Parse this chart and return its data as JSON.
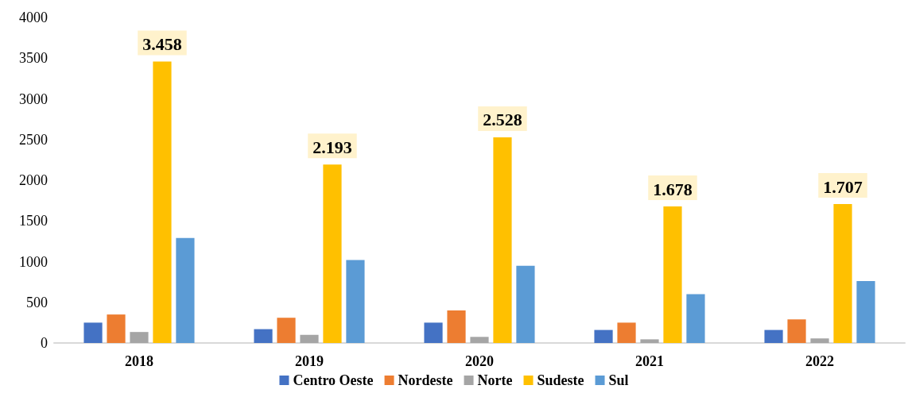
{
  "chart_data": {
    "type": "bar",
    "categories": [
      "2018",
      "2019",
      "2020",
      "2021",
      "2022"
    ],
    "series": [
      {
        "name": "Centro Oeste",
        "color": "#4472c4",
        "values": [
          250,
          170,
          250,
          160,
          160
        ]
      },
      {
        "name": "Nordeste",
        "color": "#ed7d31",
        "values": [
          350,
          310,
          400,
          250,
          290
        ]
      },
      {
        "name": "Norte",
        "color": "#a5a5a5",
        "values": [
          135,
          100,
          75,
          45,
          55
        ]
      },
      {
        "name": "Sudeste",
        "color": "#ffc000",
        "values": [
          3458,
          2193,
          2528,
          1678,
          1707
        ],
        "value_labels": [
          "3.458",
          "2.193",
          "2.528",
          "1.678",
          "1.707"
        ]
      },
      {
        "name": "Sul",
        "color": "#5b9bd5",
        "values": [
          1290,
          1020,
          950,
          600,
          760
        ]
      }
    ],
    "ylim": [
      0,
      4000
    ],
    "yticks": [
      0,
      500,
      1000,
      1500,
      2000,
      2500,
      3000,
      3500,
      4000
    ],
    "grid": false,
    "legend": "bottom"
  }
}
